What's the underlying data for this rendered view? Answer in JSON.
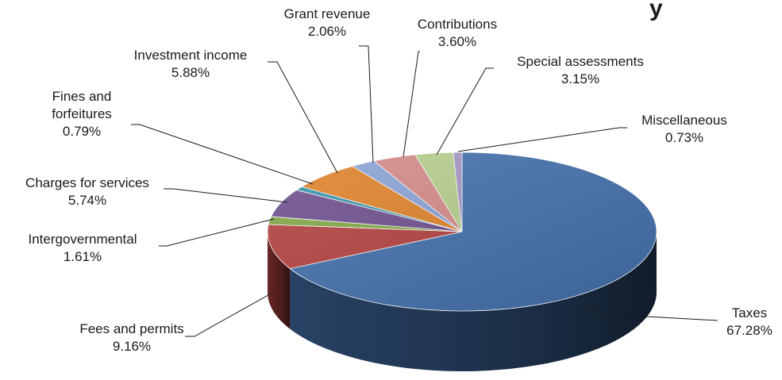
{
  "chart_data": {
    "type": "pie",
    "title": "",
    "slices": [
      {
        "name": "Taxes",
        "value": 67.28,
        "label": "67.28%",
        "color": "#4471ad"
      },
      {
        "name": "Fees and permits",
        "value": 9.16,
        "label": "9.16%",
        "color": "#b44240"
      },
      {
        "name": "Intergovernmental",
        "value": 1.61,
        "label": "1.61%",
        "color": "#83a947"
      },
      {
        "name": "Charges for services",
        "value": 5.74,
        "label": "5.74%",
        "color": "#6f5190"
      },
      {
        "name": "Fines and forfeitures",
        "value": 0.79,
        "label": "0.79%",
        "color": "#3a93aa"
      },
      {
        "name": "Investment income",
        "value": 5.88,
        "label": "5.88%",
        "color": "#e0832a"
      },
      {
        "name": "Grant revenue",
        "value": 2.06,
        "label": "2.06%",
        "color": "#8ba3d6"
      },
      {
        "name": "Contributions",
        "value": 3.6,
        "label": "3.60%",
        "color": "#d48b89"
      },
      {
        "name": "Special assessments",
        "value": 3.15,
        "label": "3.15%",
        "color": "#b7cf8e"
      },
      {
        "name": "Miscellaneous",
        "value": 0.73,
        "label": "0.73%",
        "color": "#a597c4"
      }
    ],
    "legend": "none",
    "data_labels": "outside with leader lines"
  }
}
